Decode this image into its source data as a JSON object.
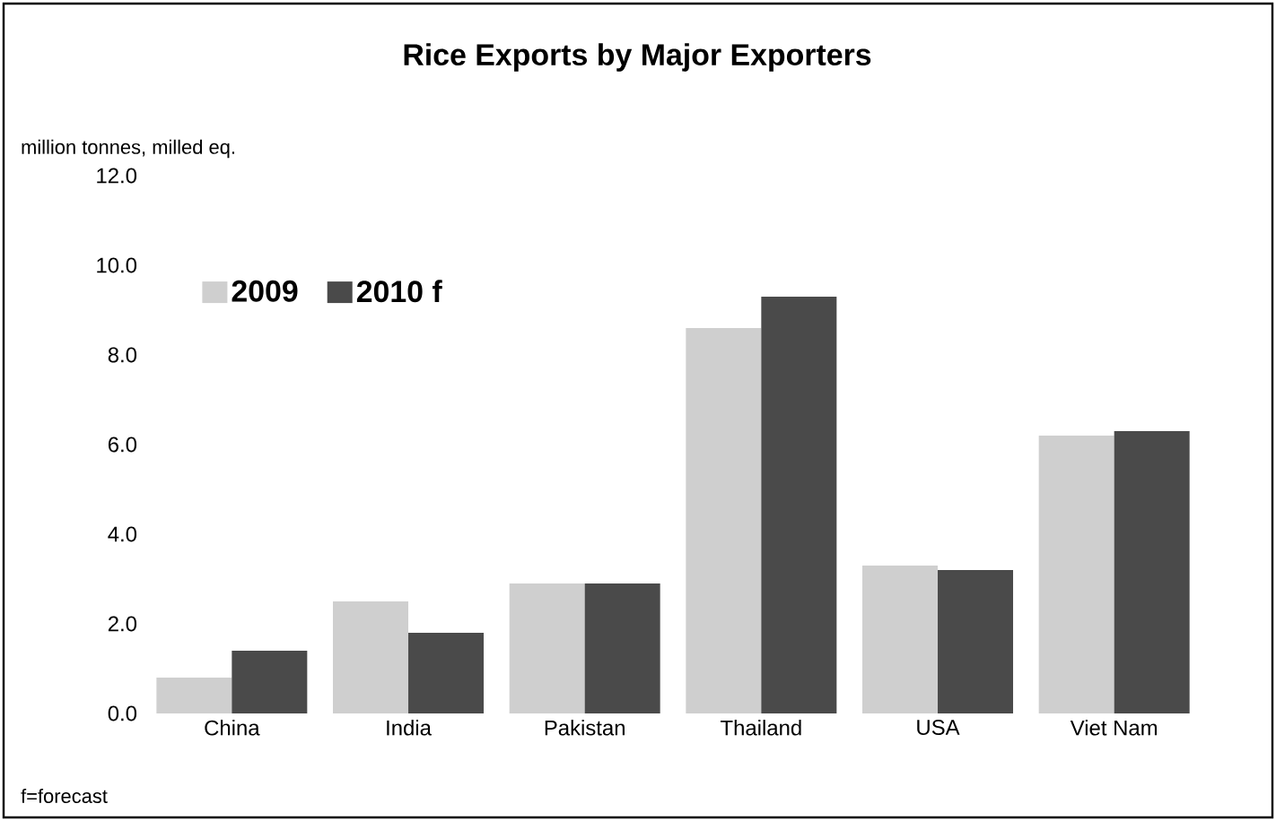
{
  "chart_data": {
    "type": "bar",
    "title": "Rice Exports by Major Exporters",
    "ylabel": "million tonnes, milled eq.",
    "categories": [
      "China",
      "India",
      "Pakistan",
      "Thailand",
      "USA",
      "Viet Nam"
    ],
    "series": [
      {
        "name": "2009",
        "color": "#cfcfcf",
        "values": [
          0.8,
          2.5,
          2.9,
          8.6,
          3.3,
          6.2
        ]
      },
      {
        "name": "2010 f",
        "color": "#4a4a4a",
        "values": [
          1.4,
          1.8,
          2.9,
          9.3,
          3.2,
          6.3
        ]
      }
    ],
    "ylim": [
      0,
      12
    ],
    "yticks": [
      {
        "value": 0,
        "label": "0.0"
      },
      {
        "value": 2,
        "label": "2.0"
      },
      {
        "value": 4,
        "label": "4.0"
      },
      {
        "value": 6,
        "label": "6.0"
      },
      {
        "value": 8,
        "label": "8.0"
      },
      {
        "value": 10,
        "label": "10.0"
      },
      {
        "value": 12,
        "label": "12.0"
      }
    ],
    "legend": "top left",
    "grid": false,
    "annotations": [
      "f=forecast"
    ]
  }
}
